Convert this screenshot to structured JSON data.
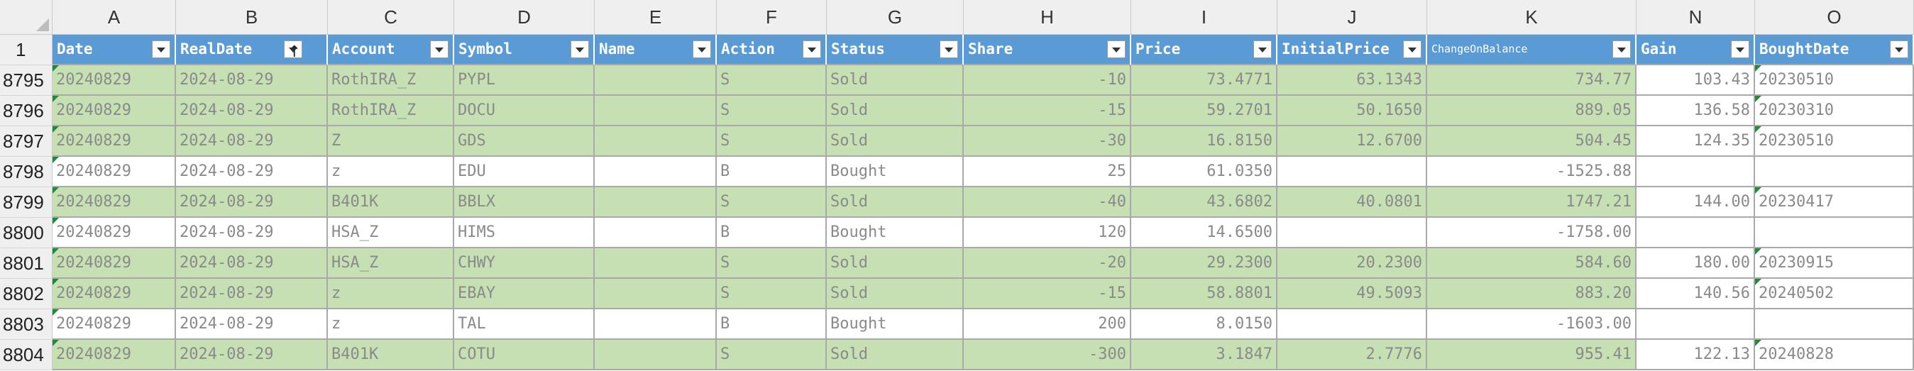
{
  "columns": [
    {
      "letter": "A",
      "header": "Date"
    },
    {
      "letter": "B",
      "header": "RealDate",
      "sort_icon": "↑"
    },
    {
      "letter": "C",
      "header": "Account"
    },
    {
      "letter": "D",
      "header": "Symbol"
    },
    {
      "letter": "E",
      "header": "Name"
    },
    {
      "letter": "F",
      "header": "Action"
    },
    {
      "letter": "G",
      "header": "Status"
    },
    {
      "letter": "H",
      "header": "Share"
    },
    {
      "letter": "I",
      "header": "Price"
    },
    {
      "letter": "J",
      "header": "InitialPrice"
    },
    {
      "letter": "K",
      "header": "ChangeOnBalance"
    },
    {
      "letter": "N",
      "header": "Gain"
    },
    {
      "letter": "O",
      "header": "BoughtDate"
    }
  ],
  "header_row_number": "1",
  "colors": {
    "header_fill": "#5b9bd5",
    "sold_fill": "#c6e0b4",
    "bought_fill": "#ffffff",
    "error_flag": "#1e8b3a"
  },
  "rows": [
    {
      "num": "8795",
      "fill": "green",
      "cells": [
        "20240829",
        "2024-08-29",
        "RothIRA_Z",
        "PYPL",
        "",
        "S",
        "Sold",
        "-10",
        "73.4771",
        "63.1343",
        "734.77",
        "103.43",
        "20230510"
      ]
    },
    {
      "num": "8796",
      "fill": "green",
      "cells": [
        "20240829",
        "2024-08-29",
        "RothIRA_Z",
        "DOCU",
        "",
        "S",
        "Sold",
        "-15",
        "59.2701",
        "50.1650",
        "889.05",
        "136.58",
        "20230310"
      ]
    },
    {
      "num": "8797",
      "fill": "green",
      "cells": [
        "20240829",
        "2024-08-29",
        "Z",
        "GDS",
        "",
        "S",
        "Sold",
        "-30",
        "16.8150",
        "12.6700",
        "504.45",
        "124.35",
        "20230510"
      ]
    },
    {
      "num": "8798",
      "fill": "white",
      "cells": [
        "20240829",
        "2024-08-29",
        "z",
        "EDU",
        "",
        "B",
        "Bought",
        "25",
        "61.0350",
        "",
        "-1525.88",
        "",
        ""
      ]
    },
    {
      "num": "8799",
      "fill": "green",
      "cells": [
        "20240829",
        "2024-08-29",
        "B401K",
        "BBLX",
        "",
        "S",
        "Sold",
        "-40",
        "43.6802",
        "40.0801",
        "1747.21",
        "144.00",
        "20230417"
      ]
    },
    {
      "num": "8800",
      "fill": "white",
      "cells": [
        "20240829",
        "2024-08-29",
        "HSA_Z",
        "HIMS",
        "",
        "B",
        "Bought",
        "120",
        "14.6500",
        "",
        "-1758.00",
        "",
        ""
      ]
    },
    {
      "num": "8801",
      "fill": "green",
      "cells": [
        "20240829",
        "2024-08-29",
        "HSA_Z",
        "CHWY",
        "",
        "S",
        "Sold",
        "-20",
        "29.2300",
        "20.2300",
        "584.60",
        "180.00",
        "20230915"
      ]
    },
    {
      "num": "8802",
      "fill": "green",
      "cells": [
        "20240829",
        "2024-08-29",
        "z",
        "EBAY",
        "",
        "S",
        "Sold",
        "-15",
        "58.8801",
        "49.5093",
        "883.20",
        "140.56",
        "20240502"
      ]
    },
    {
      "num": "8803",
      "fill": "white",
      "cells": [
        "20240829",
        "2024-08-29",
        "z",
        "TAL",
        "",
        "B",
        "Bought",
        "200",
        "8.0150",
        "",
        "-1603.00",
        "",
        ""
      ]
    },
    {
      "num": "8804",
      "fill": "green",
      "cells": [
        "20240829",
        "2024-08-29",
        "B401K",
        "COTU",
        "",
        "S",
        "Sold",
        "-300",
        "3.1847",
        "2.7776",
        "955.41",
        "122.13",
        "20240828"
      ]
    }
  ]
}
